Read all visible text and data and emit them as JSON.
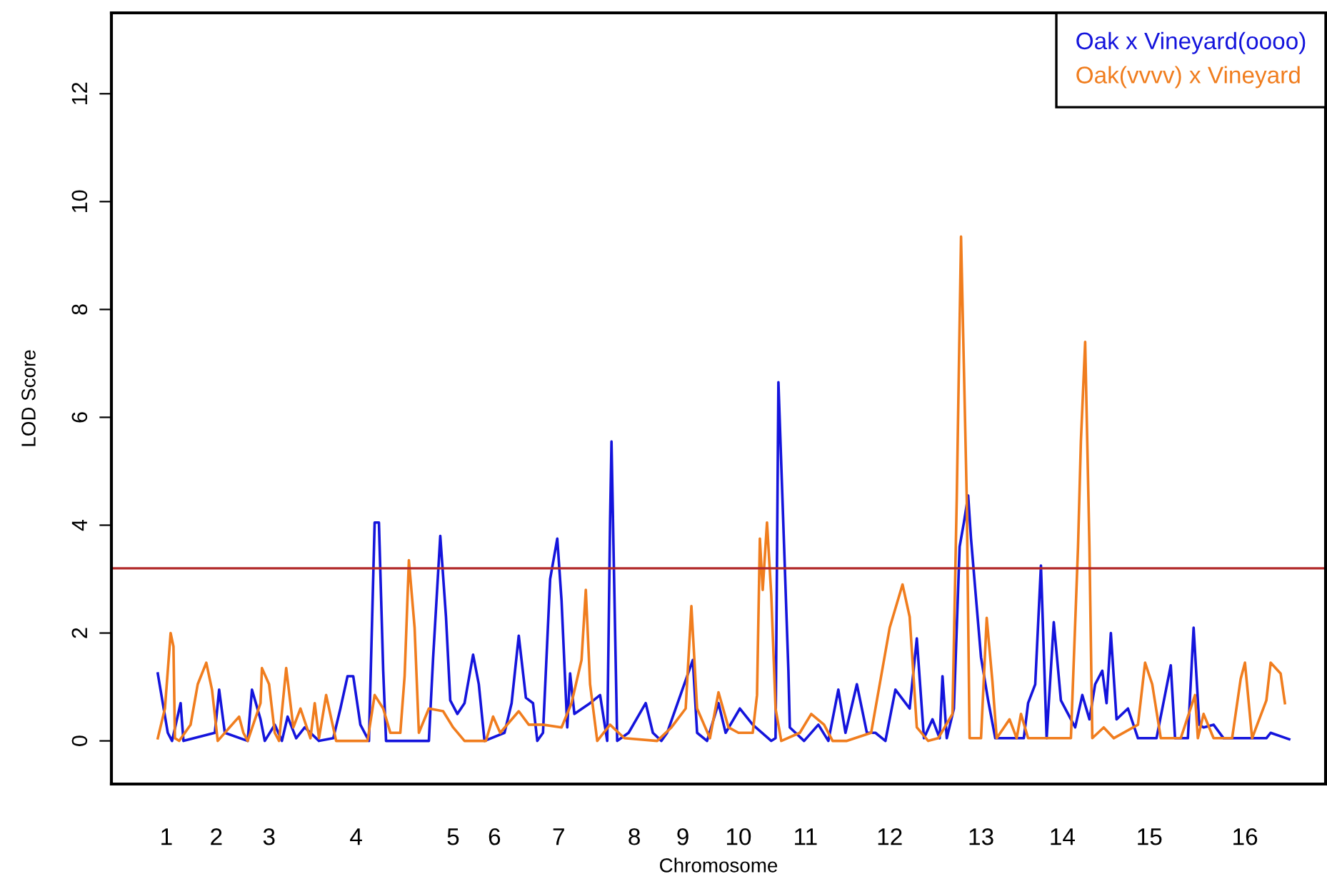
{
  "chart_data": {
    "type": "line",
    "xlabel": "Chromosome",
    "ylabel": "LOD Score",
    "ylim": [
      -0.8,
      13.5
    ],
    "categories": [
      null,
      null,
      null,
      null,
      null,
      null,
      null,
      null,
      null,
      null,
      null,
      null,
      null,
      null,
      null,
      null,
      null,
      null,
      null,
      null,
      null,
      null,
      null,
      null,
      null,
      null,
      null,
      null,
      null,
      null,
      null,
      null,
      null,
      null,
      null,
      null,
      null,
      null,
      "1",
      null,
      null,
      null,
      null,
      null,
      null,
      null,
      null,
      null,
      null,
      null,
      null,
      null,
      null,
      null,
      null,
      null,
      null,
      null,
      null,
      null,
      null,
      null,
      null,
      null,
      null,
      null,
      null,
      null,
      null,
      null,
      null,
      null,
      null,
      "2",
      null,
      null,
      null,
      null,
      null,
      null,
      null,
      null,
      null,
      null,
      null,
      null,
      null,
      null,
      null,
      null,
      null,
      null,
      null,
      null,
      null,
      null,
      null,
      null,
      null,
      null,
      null,
      null,
      null,
      null,
      null,
      null,
      null,
      null,
      null,
      null,
      "3",
      null,
      null,
      null,
      null,
      null,
      null,
      null,
      null,
      null,
      null,
      null,
      null,
      null,
      null,
      null,
      null,
      null,
      null,
      null,
      null,
      null,
      null,
      null,
      null,
      null,
      null,
      null,
      null,
      null,
      null,
      null,
      null,
      null,
      null,
      null,
      null,
      null,
      null,
      null,
      null,
      null,
      null,
      null,
      null,
      null,
      null,
      null,
      null,
      null,
      null,
      null,
      null,
      null,
      null,
      null,
      null,
      null,
      null,
      null,
      null,
      "4",
      null,
      null,
      null,
      null,
      null,
      null,
      null,
      null,
      null,
      null,
      null,
      null,
      null,
      null,
      null,
      null,
      null,
      null,
      null,
      null,
      null,
      null,
      null,
      null,
      null,
      null,
      null,
      null,
      null,
      null,
      null,
      null,
      null,
      null,
      null,
      null,
      null,
      null,
      null,
      null,
      null,
      null,
      null,
      null,
      null,
      null,
      null,
      null,
      null,
      null,
      null,
      null,
      null,
      null,
      null,
      null,
      null,
      null,
      null,
      null,
      null,
      null,
      null,
      null,
      null,
      null,
      null,
      "5",
      null,
      null,
      null,
      null,
      null,
      null,
      null,
      null,
      null,
      null,
      null,
      null,
      null,
      null,
      null,
      null,
      null,
      null,
      null,
      null,
      null,
      null,
      null,
      null,
      null,
      null,
      null,
      null,
      "6",
      null,
      null,
      null,
      null,
      null,
      null,
      null,
      null,
      null,
      null,
      null,
      null,
      null,
      null,
      null,
      null,
      null,
      null,
      null,
      null,
      null,
      null,
      null,
      null,
      null,
      null,
      null,
      null,
      null,
      null,
      null,
      null,
      null,
      null,
      null,
      null,
      null,
      null,
      null,
      null,
      null,
      null,
      null,
      null,
      "7",
      null,
      null,
      null,
      null,
      null,
      null,
      null,
      null,
      null,
      null,
      null,
      null,
      null,
      null,
      null,
      null,
      null,
      null,
      null,
      null,
      null,
      null,
      null,
      null,
      null,
      null,
      null,
      null,
      null,
      null,
      null,
      null,
      null,
      null,
      null,
      null,
      null,
      null,
      null,
      null,
      null,
      null,
      null,
      null,
      null,
      null,
      null,
      null,
      null,
      null,
      null,
      null,
      "8",
      null,
      null,
      null,
      null,
      null,
      null,
      null,
      null,
      null,
      null,
      null,
      null,
      null,
      null,
      null,
      null,
      null,
      null,
      null,
      null,
      null,
      null,
      null,
      null,
      null,
      null,
      null,
      null,
      null,
      null,
      null,
      null,
      null,
      "9",
      null,
      null,
      null,
      null,
      null,
      null,
      null,
      null,
      null,
      null,
      null,
      null,
      null,
      null,
      null,
      null,
      null,
      null,
      null,
      null,
      null,
      null,
      null,
      null,
      null,
      null,
      null,
      null,
      null,
      null,
      null,
      null,
      null,
      null,
      null,
      null,
      null,
      null,
      "10",
      null,
      null,
      null,
      null,
      null,
      null,
      null,
      null,
      null,
      null,
      null,
      null,
      null,
      null,
      null,
      null,
      null,
      null,
      null,
      null,
      null,
      null,
      null,
      null,
      null,
      null,
      null,
      null,
      null,
      null,
      null,
      null,
      null,
      null,
      null,
      null,
      null,
      null,
      null,
      null,
      null,
      null,
      null,
      null,
      null,
      null,
      "11",
      null,
      null,
      null,
      null,
      null,
      null,
      null,
      null,
      null,
      null,
      null,
      null,
      null,
      null,
      null,
      null,
      null,
      null,
      null,
      null,
      null,
      null,
      null,
      null,
      null,
      null,
      null,
      null,
      null,
      null,
      null,
      null,
      null,
      null,
      null,
      null,
      null,
      null,
      null,
      null,
      null,
      null,
      null,
      null,
      null,
      null,
      null,
      null,
      null,
      null,
      null,
      null,
      null,
      null,
      null,
      null,
      null,
      null,
      "12",
      null,
      null,
      null,
      null,
      null,
      null,
      null,
      null,
      null,
      null,
      null,
      null,
      null,
      null,
      null,
      null,
      null,
      null,
      null,
      null,
      null,
      null,
      null,
      null,
      null,
      null,
      null,
      null,
      null,
      null,
      null,
      null,
      null,
      null,
      null,
      null,
      null,
      null,
      null,
      null,
      null,
      null,
      null,
      null,
      null,
      null,
      null,
      null,
      null,
      null,
      null,
      null,
      null,
      null,
      null,
      null,
      null,
      null,
      null,
      null,
      null,
      null,
      null,
      "13",
      null,
      null,
      null,
      null,
      null,
      null,
      null,
      null,
      null,
      null,
      null,
      null,
      null,
      null,
      null,
      null,
      null,
      null,
      null,
      null,
      null,
      null,
      null,
      null,
      null,
      null,
      null,
      null,
      null,
      null,
      null,
      null,
      null,
      null,
      null,
      null,
      null,
      null,
      null,
      null,
      null,
      null,
      null,
      null,
      null,
      null,
      null,
      null,
      null,
      null,
      null,
      null,
      null,
      null,
      null,
      null,
      "14",
      null,
      null,
      null,
      null,
      null,
      null,
      null,
      null,
      null,
      null,
      null,
      null,
      null,
      null,
      null,
      null,
      null,
      null,
      null,
      null,
      null,
      null,
      null,
      null,
      null,
      null,
      null,
      null,
      null,
      null,
      null,
      null,
      null,
      null,
      null,
      null,
      null,
      null,
      null,
      null,
      null,
      null,
      null,
      null,
      null,
      null,
      null,
      null,
      null,
      null,
      null,
      null,
      null,
      null,
      null,
      null,
      null,
      null,
      null,
      null,
      "15",
      null,
      null,
      null,
      null,
      null,
      null,
      null,
      null,
      null,
      null,
      null,
      null,
      null,
      null,
      null,
      null,
      null,
      null,
      null,
      null,
      null,
      null,
      null,
      null,
      null,
      null,
      null,
      null,
      null,
      null,
      null,
      null,
      null,
      null,
      null,
      null,
      null,
      null,
      null,
      null,
      null,
      null,
      null,
      null,
      null,
      null,
      null,
      null,
      null,
      null,
      null,
      null,
      null,
      null,
      null,
      null,
      null,
      null,
      null,
      null,
      null,
      null,
      null,
      null,
      null,
      null,
      "16",
      null,
      null,
      null,
      null,
      null,
      null,
      null,
      null,
      null,
      null,
      null,
      null,
      null,
      null,
      null,
      null,
      null,
      null,
      null,
      null,
      null,
      null,
      null,
      null,
      null,
      null,
      null,
      null,
      null,
      null,
      null,
      null,
      null,
      null,
      null,
      null,
      null,
      null,
      null,
      null,
      null,
      null,
      null,
      null,
      null,
      null,
      null,
      null,
      null,
      null,
      null,
      null,
      null,
      null,
      null,
      null
    ],
    "yticks": [
      0,
      2,
      4,
      6,
      8,
      10,
      12
    ],
    "grid": false,
    "legend": "top right",
    "marker": "none",
    "line_style": "solid",
    "ref_lines": [
      {
        "axis": "y",
        "value": 3.2,
        "color": "#b22a2a"
      }
    ],
    "series": [
      {
        "name": "Oak x Vineyard(oooo)",
        "color": "#1414dc",
        "values": [
          null,
          null,
          null,
          null,
          null,
          null,
          null,
          null,
          null,
          null,
          null,
          null,
          null,
          null,
          null,
          null,
          null,
          null,
          null,
          null,
          null,
          null,
          null,
          null,
          null,
          null,
          null,
          null,
          null,
          null,
          null,
          null,
          1.25,
          null,
          null,
          null,
          null,
          null,
          null,
          0.15,
          null,
          null,
          0,
          null,
          null,
          null,
          null,
          null,
          0.7,
          null,
          0,
          null,
          null,
          null,
          null,
          null,
          null,
          null,
          null,
          null,
          null,
          null,
          null,
          null,
          null,
          null,
          null,
          null,
          null,
          null,
          null,
          null,
          0.15,
          null,
          null,
          0.95,
          null,
          null,
          null,
          0.15,
          null,
          null,
          null,
          null,
          null,
          null,
          null,
          null,
          null,
          null,
          null,
          null,
          null,
          null,
          null,
          0,
          null,
          null,
          0.95,
          null,
          null,
          null,
          null,
          null,
          0.4,
          null,
          null,
          0,
          null,
          null,
          null,
          null,
          null,
          null,
          0.3,
          null,
          null,
          null,
          null,
          0,
          null,
          null,
          null,
          0.45,
          null,
          null,
          null,
          null,
          null,
          0.05,
          null,
          null,
          null,
          null,
          null,
          0.25,
          null,
          null,
          null,
          null,
          null,
          null,
          null,
          null,
          null,
          0,
          null,
          null,
          null,
          null,
          null,
          null,
          null,
          null,
          null,
          0.05,
          null,
          null,
          null,
          null,
          0.6,
          null,
          null,
          null,
          null,
          1.2,
          null,
          null,
          null,
          1.2,
          null,
          null,
          null,
          null,
          0.3,
          null,
          null,
          null,
          null,
          null,
          0,
          null,
          null,
          null,
          4.05,
          null,
          null,
          4.05,
          null,
          null,
          1.3,
          null,
          0,
          null,
          null,
          null,
          null,
          null,
          null,
          null,
          null,
          null,
          null,
          null,
          null,
          0,
          null,
          null,
          null,
          null,
          null,
          null,
          null,
          null,
          null,
          null,
          null,
          null,
          null,
          null,
          null,
          null,
          0,
          null,
          null,
          1.55,
          null,
          null,
          null,
          null,
          3.8,
          null,
          null,
          null,
          2.3,
          null,
          null,
          0.75,
          null,
          null,
          null,
          null,
          0.5,
          null,
          null,
          null,
          null,
          0.7,
          null,
          null,
          null,
          null,
          null,
          1.6,
          null,
          null,
          null,
          1.05,
          null,
          null,
          null,
          0,
          null,
          null,
          null,
          null,
          null,
          null,
          null,
          null,
          null,
          null,
          null,
          null,
          null,
          0.15,
          null,
          null,
          null,
          null,
          0.7,
          null,
          null,
          null,
          null,
          1.95,
          null,
          null,
          null,
          null,
          0.8,
          null,
          null,
          null,
          null,
          0.7,
          null,
          null,
          0,
          null,
          null,
          null,
          0.15,
          null,
          null,
          null,
          null,
          3.0,
          null,
          null,
          null,
          null,
          3.75,
          null,
          null,
          2.6,
          null,
          null,
          null,
          0.25,
          null,
          1.25,
          null,
          null,
          0.5,
          null,
          null,
          null,
          null,
          null,
          null,
          null,
          null,
          null,
          null,
          0.7,
          null,
          null,
          null,
          null,
          null,
          null,
          0.85,
          null,
          null,
          null,
          null,
          0,
          null,
          4.05,
          5.55,
          null,
          null,
          null,
          0,
          null,
          null,
          null,
          null,
          null,
          null,
          null,
          0.15,
          null,
          null,
          null,
          null,
          null,
          null,
          null,
          null,
          null,
          null,
          null,
          0.7,
          null,
          null,
          null,
          null,
          0.15,
          null,
          null,
          null,
          null,
          null,
          0,
          null,
          null,
          null,
          0.15,
          null,
          null,
          null,
          null,
          null,
          null,
          null,
          null,
          null,
          0.9,
          null,
          null,
          null,
          null,
          null,
          null,
          null,
          1.5,
          null,
          null,
          0.15,
          null,
          null,
          null,
          null,
          null,
          null,
          0,
          null,
          null,
          null,
          null,
          null,
          null,
          null,
          0.7,
          null,
          null,
          null,
          null,
          0.15,
          null,
          null,
          null,
          null,
          null,
          null,
          null,
          null,
          null,
          0.6,
          null,
          null,
          null,
          null,
          null,
          null,
          null,
          null,
          0.3,
          null,
          null,
          null,
          null,
          null,
          null,
          null,
          null,
          null,
          null,
          null,
          null,
          0,
          null,
          null,
          0.05,
          null,
          6.65,
          null,
          null,
          null,
          null,
          null,
          null,
          1.3,
          0.25,
          null,
          null,
          null,
          null,
          null,
          null,
          null,
          null,
          null,
          0,
          null,
          null,
          null,
          null,
          null,
          null,
          null,
          null,
          null,
          0.3,
          null,
          null,
          null,
          null,
          null,
          null,
          0,
          null,
          null,
          null,
          null,
          null,
          null,
          0.95,
          null,
          null,
          null,
          null,
          0.15,
          null,
          null,
          null,
          null,
          null,
          null,
          null,
          1.05,
          null,
          null,
          null,
          null,
          null,
          null,
          0.15,
          null,
          null,
          null,
          null,
          null,
          0.15,
          null,
          null,
          null,
          null,
          null,
          null,
          0,
          null,
          null,
          null,
          null,
          null,
          null,
          0.95,
          null,
          null,
          null,
          null,
          null,
          null,
          null,
          null,
          null,
          0.6,
          null,
          null,
          null,
          null,
          1.9,
          null,
          null,
          null,
          null,
          0.05,
          null,
          null,
          null,
          null,
          null,
          0.4,
          null,
          null,
          null,
          null,
          0.05,
          null,
          1.2,
          null,
          null,
          0.05,
          null,
          null,
          null,
          null,
          0.6,
          null,
          null,
          null,
          3.6,
          null,
          null,
          4.05,
          null,
          null,
          4.55,
          null,
          3.75,
          null,
          null,
          2.8,
          null,
          null,
          null,
          1.55,
          null,
          null,
          null,
          null,
          0.75,
          null,
          null,
          null,
          null,
          0.05,
          null,
          null,
          null,
          null,
          null,
          null,
          null,
          null,
          null,
          null,
          null,
          null,
          null,
          null,
          null,
          null,
          null,
          null,
          null,
          0.05,
          null,
          null,
          0.7,
          null,
          null,
          null,
          null,
          1.05,
          null,
          null,
          null,
          3.25,
          null,
          null,
          null,
          0.05,
          null,
          null,
          null,
          null,
          2.2,
          null,
          null,
          null,
          null,
          0.75,
          null,
          null,
          null,
          null,
          null,
          null,
          null,
          null,
          null,
          0.25,
          null,
          null,
          null,
          null,
          0.85,
          null,
          null,
          null,
          null,
          0.4,
          null,
          null,
          null,
          1.05,
          null,
          null,
          null,
          null,
          1.3,
          null,
          null,
          0.7,
          null,
          null,
          2.0,
          null,
          null,
          null,
          0.4,
          null,
          null,
          null,
          null,
          null,
          null,
          null,
          0.6,
          null,
          null,
          null,
          null,
          null,
          null,
          0.05,
          null,
          null,
          null,
          null,
          null,
          null,
          null,
          null,
          null,
          null,
          null,
          null,
          0.05,
          null,
          null,
          null,
          null,
          null,
          null,
          null,
          null,
          null,
          1.4,
          null,
          null,
          0.05,
          null,
          null,
          null,
          null,
          null,
          null,
          null,
          null,
          0.05,
          null,
          null,
          null,
          2.1,
          null,
          null,
          null,
          0.3,
          null,
          null,
          0.25,
          null,
          null,
          null,
          null,
          null,
          null,
          0.3,
          null,
          null,
          null,
          null,
          null,
          null,
          0.05,
          null,
          null,
          null,
          null,
          null,
          null,
          null,
          null,
          null,
          null,
          null,
          null,
          null,
          null,
          null,
          0.05,
          null,
          null,
          null,
          null,
          null,
          null,
          null,
          null,
          null,
          null,
          null,
          null,
          null,
          0.05,
          null,
          null,
          0.15,
          null,
          null,
          null,
          null,
          null,
          null,
          null,
          null,
          null,
          null,
          null,
          null,
          0.03,
          null,
          null,
          null,
          null,
          null,
          null,
          null,
          null,
          null,
          null,
          null,
          null,
          null,
          null,
          null,
          null,
          null,
          null,
          null,
          null,
          null,
          null,
          null,
          null,
          null
        ]
      },
      {
        "name": "Oak(vvvv) x Vineyard",
        "color": "#f07d1e",
        "values": [
          null,
          null,
          null,
          null,
          null,
          null,
          null,
          null,
          null,
          null,
          null,
          null,
          null,
          null,
          null,
          null,
          null,
          null,
          null,
          null,
          null,
          null,
          null,
          null,
          null,
          null,
          null,
          null,
          null,
          null,
          null,
          null,
          0.05,
          null,
          null,
          null,
          null,
          0.6,
          null,
          null,
          null,
          2.0,
          null,
          1.75,
          0.05,
          null,
          null,
          0,
          null,
          null,
          null,
          null,
          null,
          null,
          null,
          0.3,
          null,
          null,
          null,
          null,
          1.05,
          null,
          null,
          null,
          null,
          null,
          1.45,
          null,
          null,
          null,
          0.95,
          null,
          null,
          null,
          0,
          null,
          null,
          null,
          null,
          null,
          null,
          null,
          null,
          null,
          null,
          null,
          null,
          null,
          null,
          0.45,
          null,
          null,
          0.15,
          null,
          null,
          0,
          null,
          null,
          null,
          null,
          null,
          null,
          null,
          null,
          0.7,
          1.35,
          null,
          null,
          null,
          null,
          1.05,
          null,
          null,
          null,
          0.15,
          null,
          null,
          0,
          null,
          null,
          null,
          null,
          1.35,
          null,
          null,
          null,
          null,
          0.25,
          null,
          null,
          null,
          null,
          0.6,
          null,
          null,
          null,
          null,
          null,
          null,
          0.05,
          null,
          null,
          0.7,
          null,
          null,
          0.05,
          null,
          null,
          null,
          null,
          0.85,
          null,
          null,
          null,
          null,
          null,
          null,
          0,
          null,
          null,
          null,
          null,
          null,
          null,
          null,
          null,
          null,
          null,
          null,
          null,
          null,
          null,
          null,
          null,
          null,
          null,
          null,
          null,
          null,
          0,
          null,
          null,
          null,
          null,
          0.85,
          null,
          null,
          null,
          null,
          null,
          0.6,
          null,
          null,
          null,
          null,
          0.15,
          null,
          null,
          null,
          null,
          null,
          null,
          0.15,
          null,
          null,
          1.2,
          null,
          null,
          3.35,
          null,
          null,
          null,
          2.1,
          null,
          null,
          0.15,
          null,
          null,
          null,
          null,
          null,
          null,
          0.6,
          null,
          null,
          null,
          null,
          null,
          null,
          null,
          null,
          null,
          0.55,
          null,
          null,
          null,
          null,
          null,
          null,
          0.25,
          null,
          null,
          null,
          null,
          null,
          null,
          null,
          0,
          null,
          null,
          null,
          null,
          null,
          null,
          null,
          null,
          null,
          null,
          null,
          0,
          null,
          null,
          0,
          null,
          null,
          null,
          null,
          0.45,
          null,
          null,
          null,
          null,
          0.15,
          null,
          null,
          null,
          null,
          null,
          null,
          null,
          null,
          null,
          null,
          null,
          null,
          0.55,
          null,
          null,
          null,
          null,
          null,
          null,
          0.3,
          null,
          null,
          null,
          null,
          null,
          null,
          null,
          null,
          null,
          0.3,
          null,
          null,
          null,
          null,
          null,
          null,
          null,
          null,
          null,
          null,
          null,
          null,
          0.25,
          null,
          null,
          null,
          null,
          null,
          null,
          0.7,
          null,
          null,
          null,
          null,
          null,
          null,
          1.5,
          null,
          null,
          2.8,
          null,
          null,
          1.05,
          null,
          null,
          null,
          null,
          0,
          null,
          null,
          null,
          null,
          null,
          null,
          null,
          null,
          0.3,
          null,
          null,
          null,
          null,
          null,
          null,
          null,
          null,
          null,
          0.05,
          null,
          null,
          null,
          null,
          null,
          null,
          null,
          null,
          null,
          null,
          null,
          null,
          null,
          null,
          null,
          null,
          null,
          null,
          null,
          null,
          null,
          null,
          0,
          null,
          null,
          null,
          null,
          null,
          null,
          null,
          null,
          null,
          0.25,
          null,
          null,
          null,
          null,
          null,
          null,
          null,
          null,
          null,
          0.6,
          null,
          null,
          null,
          2.5,
          null,
          null,
          null,
          0.6,
          null,
          null,
          null,
          null,
          null,
          null,
          null,
          null,
          0.05,
          null,
          null,
          null,
          null,
          null,
          0.9,
          null,
          null,
          null,
          null,
          null,
          null,
          0.25,
          null,
          null,
          null,
          null,
          null,
          null,
          0.15,
          null,
          null,
          null,
          null,
          null,
          null,
          null,
          null,
          null,
          0.15,
          null,
          null,
          0.85,
          null,
          3.75,
          null,
          2.8,
          null,
          null,
          4.05,
          null,
          null,
          2.7,
          null,
          null,
          0.6,
          null,
          null,
          null,
          0,
          null,
          null,
          null,
          null,
          null,
          null,
          null,
          null,
          null,
          null,
          null,
          null,
          0.15,
          null,
          null,
          null,
          null,
          null,
          null,
          null,
          0.5,
          null,
          null,
          null,
          null,
          null,
          null,
          null,
          null,
          0.3,
          null,
          null,
          null,
          null,
          null,
          0,
          null,
          null,
          null,
          null,
          null,
          null,
          null,
          null,
          null,
          0,
          null,
          null,
          null,
          null,
          null,
          null,
          null,
          null,
          null,
          null,
          null,
          null,
          null,
          null,
          null,
          null,
          0.15,
          null,
          null,
          null,
          null,
          null,
          null,
          null,
          null,
          null,
          null,
          null,
          null,
          2.1,
          null,
          null,
          null,
          null,
          null,
          null,
          null,
          null,
          2.9,
          null,
          null,
          null,
          null,
          2.3,
          null,
          null,
          null,
          null,
          0.25,
          null,
          null,
          null,
          null,
          null,
          null,
          null,
          0,
          null,
          null,
          null,
          null,
          null,
          null,
          0.05,
          null,
          null,
          null,
          null,
          null,
          null,
          null,
          null,
          null,
          0.5,
          null,
          null,
          4.5,
          null,
          null,
          9.35,
          null,
          null,
          null,
          4.5,
          null,
          0.05,
          null,
          null,
          null,
          null,
          null,
          null,
          null,
          0.05,
          null,
          null,
          null,
          2.28,
          null,
          null,
          null,
          1.1,
          null,
          null,
          0.05,
          null,
          null,
          null,
          null,
          null,
          null,
          null,
          null,
          0.4,
          null,
          null,
          null,
          null,
          0.05,
          null,
          null,
          0.5,
          null,
          null,
          null,
          null,
          0.05,
          null,
          null,
          null,
          null,
          null,
          null,
          null,
          null,
          null,
          null,
          null,
          null,
          null,
          null,
          null,
          null,
          null,
          null,
          null,
          null,
          null,
          null,
          null,
          null,
          null,
          null,
          null,
          null,
          null,
          0.05,
          null,
          null,
          null,
          null,
          3.6,
          null,
          5.55,
          null,
          null,
          7.4,
          null,
          null,
          3.6,
          null,
          0.05,
          null,
          null,
          null,
          null,
          null,
          null,
          null,
          0.25,
          null,
          null,
          null,
          null,
          null,
          null,
          0.05,
          null,
          null,
          null,
          null,
          null,
          null,
          null,
          null,
          null,
          null,
          null,
          null,
          null,
          null,
          null,
          null,
          0.3,
          null,
          null,
          null,
          null,
          1.45,
          null,
          null,
          null,
          null,
          1.05,
          null,
          null,
          null,
          null,
          null,
          0.05,
          null,
          null,
          null,
          null,
          null,
          null,
          null,
          null,
          null,
          null,
          null,
          null,
          null,
          0.05,
          null,
          null,
          null,
          null,
          null,
          null,
          null,
          null,
          null,
          0.85,
          null,
          0.05,
          null,
          null,
          null,
          0.5,
          null,
          null,
          null,
          null,
          null,
          null,
          0.05,
          null,
          null,
          null,
          null,
          null,
          null,
          null,
          null,
          null,
          null,
          null,
          null,
          0.05,
          null,
          null,
          null,
          null,
          null,
          1.15,
          null,
          null,
          1.45,
          null,
          null,
          null,
          null,
          0.05,
          null,
          null,
          null,
          null,
          null,
          null,
          null,
          null,
          null,
          0.75,
          null,
          null,
          1.45,
          null,
          null,
          null,
          null,
          null,
          null,
          1.25,
          null,
          null,
          0.7,
          null,
          null,
          null,
          null,
          null,
          null,
          null,
          null,
          null,
          null,
          null,
          null,
          null,
          null,
          null,
          null,
          null,
          null,
          null,
          null,
          null,
          null,
          null,
          null,
          null,
          null,
          null,
          null
        ]
      }
    ]
  }
}
